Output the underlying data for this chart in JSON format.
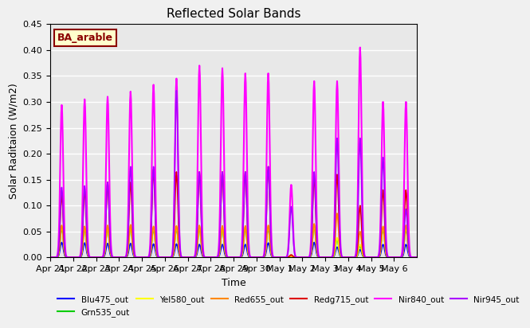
{
  "title": "Reflected Solar Bands",
  "xlabel": "Time",
  "ylabel": "Solar Raditaion (W/m2)",
  "annotation": "BA_arable",
  "ylim": [
    0,
    0.45
  ],
  "series_order": [
    "Blu475_out",
    "Grn535_out",
    "Yel580_out",
    "Red655_out",
    "Redg715_out",
    "Nir840_out",
    "Nir945_out"
  ],
  "series": {
    "Blu475_out": {
      "color": "#0000ff",
      "lw": 1.2
    },
    "Grn535_out": {
      "color": "#00cc00",
      "lw": 1.2
    },
    "Yel580_out": {
      "color": "#ffff00",
      "lw": 1.2
    },
    "Red655_out": {
      "color": "#ff8800",
      "lw": 1.2
    },
    "Redg715_out": {
      "color": "#dd0000",
      "lw": 1.2
    },
    "Nir840_out": {
      "color": "#ff00ff",
      "lw": 1.5
    },
    "Nir945_out": {
      "color": "#aa00ff",
      "lw": 1.2
    }
  },
  "xtick_labels": [
    "Apr 21",
    "Apr 22",
    "Apr 23",
    "Apr 24",
    "Apr 25",
    "Apr 26",
    "Apr 27",
    "Apr 28",
    "Apr 29",
    "Apr 30",
    "May 1",
    "May 2",
    "May 3",
    "May 4",
    "May 5",
    "May 6"
  ],
  "background_color": "#e8e8e8",
  "grid_color": "white",
  "day_peaks": {
    "Blu475_out": [
      0.029,
      0.028,
      0.027,
      0.027,
      0.026,
      0.026,
      0.025,
      0.025,
      0.025,
      0.028,
      0.001,
      0.029,
      0.02,
      0.015,
      0.025,
      0.025
    ],
    "Grn535_out": [
      0.057,
      0.055,
      0.057,
      0.058,
      0.055,
      0.056,
      0.057,
      0.056,
      0.056,
      0.057,
      0.002,
      0.06,
      0.035,
      0.022,
      0.055,
      0.055
    ],
    "Yel580_out": [
      0.06,
      0.058,
      0.06,
      0.061,
      0.058,
      0.059,
      0.06,
      0.059,
      0.059,
      0.06,
      0.002,
      0.063,
      0.038,
      0.025,
      0.058,
      0.058
    ],
    "Red655_out": [
      0.062,
      0.06,
      0.062,
      0.063,
      0.06,
      0.061,
      0.062,
      0.061,
      0.061,
      0.062,
      0.003,
      0.065,
      0.085,
      0.05,
      0.06,
      0.062
    ],
    "Redg715_out": [
      0.12,
      0.13,
      0.145,
      0.145,
      0.17,
      0.165,
      0.165,
      0.165,
      0.165,
      0.175,
      0.005,
      0.155,
      0.16,
      0.1,
      0.13,
      0.13
    ],
    "Nir840_out": [
      0.294,
      0.305,
      0.31,
      0.32,
      0.333,
      0.345,
      0.37,
      0.365,
      0.355,
      0.355,
      0.14,
      0.34,
      0.34,
      0.405,
      0.3,
      0.3
    ],
    "Nir945_out": [
      0.135,
      0.138,
      0.145,
      0.175,
      0.175,
      0.322,
      0.165,
      0.165,
      0.165,
      0.175,
      0.098,
      0.165,
      0.23,
      0.23,
      0.193,
      0.093
    ]
  }
}
